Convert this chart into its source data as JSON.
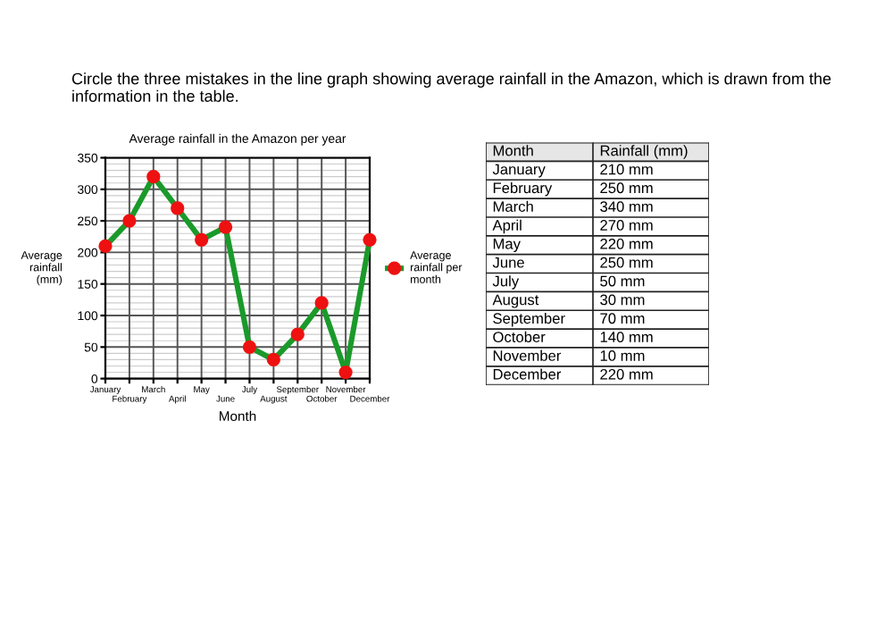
{
  "chart_data": [
    {
      "type": "line",
      "title": "Average rainfall in the Amazon per year",
      "xlabel": "Month",
      "ylabel": "Average\nrainfall\n(mm)",
      "annotations": [
        "Circle the three mistakes in the line graph showing average rainfall in the Amazon, which is drawn from the information in the table."
      ],
      "categories": [
        "January",
        "February",
        "March",
        "April",
        "May",
        "June",
        "July",
        "August",
        "September",
        "October",
        "November",
        "December"
      ],
      "series": [
        {
          "name": "Average rainfall per month",
          "color": "#1a9a2a",
          "values": [
            210,
            250,
            320,
            270,
            220,
            240,
            50,
            30,
            70,
            120,
            10,
            220
          ]
        }
      ],
      "ylim": [
        0,
        350
      ],
      "yticks": [
        0,
        50,
        100,
        150,
        200,
        250,
        300,
        350
      ],
      "grid": true,
      "legend": "right",
      "marker": "circle",
      "line_style": "solid"
    },
    {
      "type": "other",
      "xlabel": "Month",
      "ylabel": "Rainfall (mm)",
      "categories": [
        "January",
        "February",
        "March",
        "April",
        "May",
        "June",
        "July",
        "August",
        "September",
        "October",
        "November",
        "December"
      ],
      "value_labels": [
        "210 mm",
        "250 mm",
        "340 mm",
        "270 mm",
        "220 mm",
        "250 mm",
        "50 mm",
        "30 mm",
        "70 mm",
        "140 mm",
        "10 mm",
        "220 mm"
      ]
    }
  ]
}
